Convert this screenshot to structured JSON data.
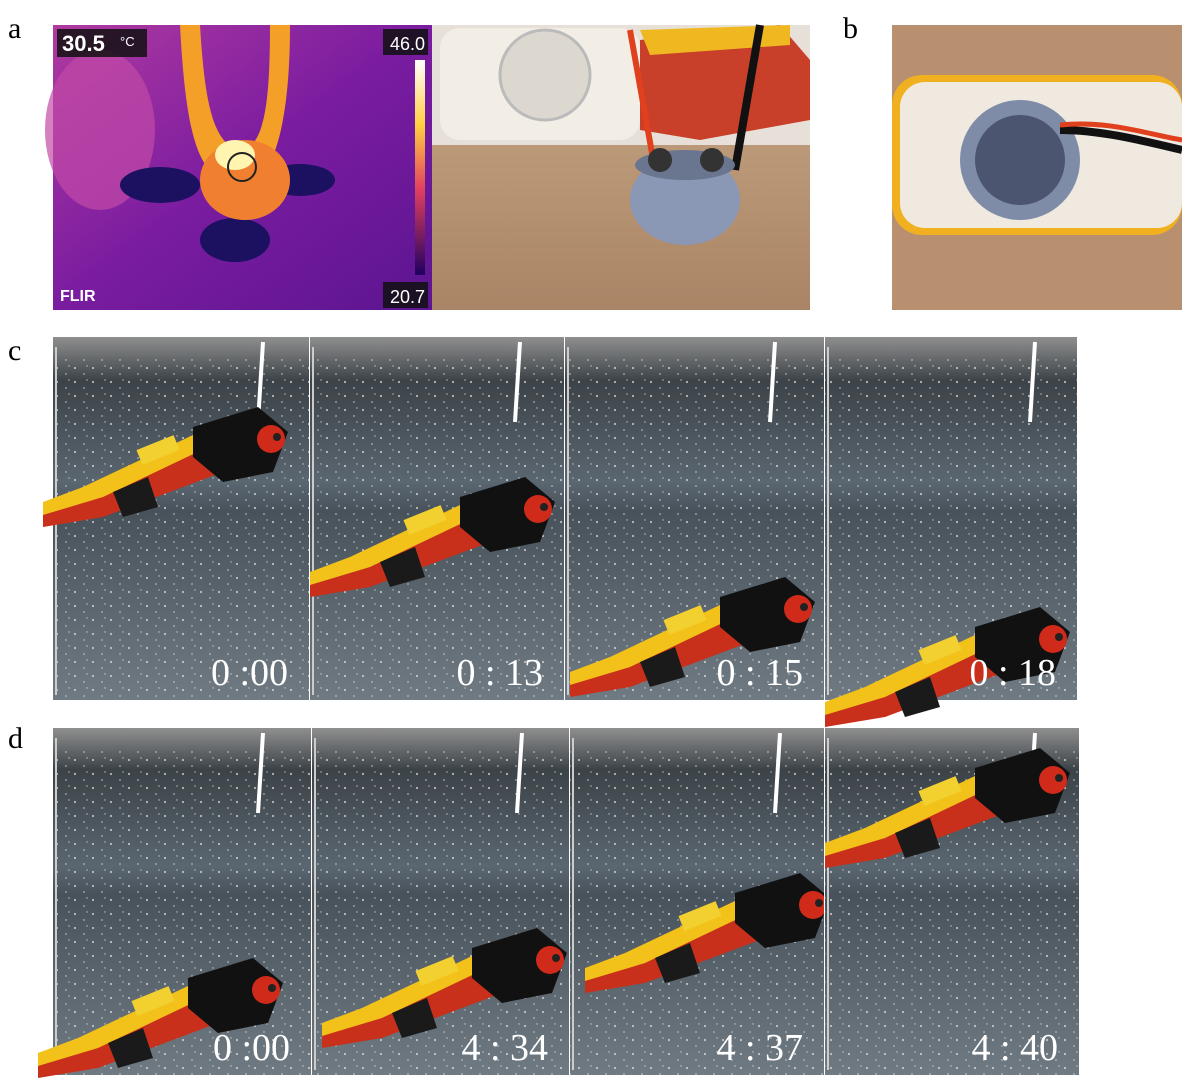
{
  "panels": {
    "a": {
      "label": "a",
      "thermal": {
        "temperature": "30.5",
        "unit": "°C",
        "scale_max": "46.0",
        "scale_min": "20.7",
        "brand": "FLIR"
      }
    },
    "b": {
      "label": "b"
    },
    "c": {
      "label": "c",
      "timestamps": [
        "0 :00",
        "0 : 13",
        "0 : 15",
        "0 : 18"
      ]
    },
    "d": {
      "label": "d",
      "timestamps": [
        "0 :00",
        "4 : 34",
        "4 : 37",
        "4 : 40"
      ]
    }
  }
}
